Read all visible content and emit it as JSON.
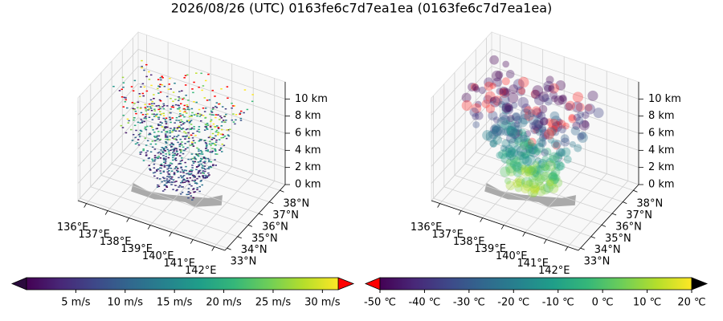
{
  "title": "2026/08/26 (UTC) 0163fe6c7d7ea1ea (0163fe6c7d7ea1ea)",
  "chart_data": [
    {
      "type": "scatter3d",
      "xlim": [
        135.6,
        142.5
      ],
      "ylim": [
        32.8,
        38.5
      ],
      "zlim": [
        0,
        12
      ],
      "xticks": [
        {
          "value": 136,
          "label": "136°E"
        },
        {
          "value": 137,
          "label": "137°E"
        },
        {
          "value": 138,
          "label": "138°E"
        },
        {
          "value": 139,
          "label": "139°E"
        },
        {
          "value": 140,
          "label": "140°E"
        },
        {
          "value": 141,
          "label": "141°E"
        },
        {
          "value": 142,
          "label": "142°E"
        }
      ],
      "yticks": [
        {
          "value": 33,
          "label": "33°N"
        },
        {
          "value": 34,
          "label": "34°N"
        },
        {
          "value": 35,
          "label": "35°N"
        },
        {
          "value": 36,
          "label": "36°N"
        },
        {
          "value": 37,
          "label": "37°N"
        },
        {
          "value": 38,
          "label": "38°N"
        }
      ],
      "zticks": [
        {
          "value": 0,
          "label": "0 km"
        },
        {
          "value": 2,
          "label": "2 km"
        },
        {
          "value": 4,
          "label": "4 km"
        },
        {
          "value": 6,
          "label": "6 km"
        },
        {
          "value": 8,
          "label": "8 km"
        },
        {
          "value": 10,
          "label": "10 km"
        }
      ],
      "colorbar": {
        "colormap": "viridis",
        "clim": [
          0,
          31.6
        ],
        "under_color": "#2b0a3d",
        "over_color": "#ff0000",
        "ticks": [
          {
            "value": 5,
            "label": "5 m/s"
          },
          {
            "value": 10,
            "label": "10 m/s"
          },
          {
            "value": 15,
            "label": "15 m/s"
          },
          {
            "value": 20,
            "label": "20 m/s"
          },
          {
            "value": 25,
            "label": "25 m/s"
          },
          {
            "value": 30,
            "label": "30 m/s"
          }
        ]
      }
    },
    {
      "type": "scatter3d",
      "xlim": [
        135.6,
        142.5
      ],
      "ylim": [
        32.8,
        38.5
      ],
      "zlim": [
        0,
        12
      ],
      "xticks": [
        {
          "value": 136,
          "label": "136°E"
        },
        {
          "value": 137,
          "label": "137°E"
        },
        {
          "value": 138,
          "label": "138°E"
        },
        {
          "value": 139,
          "label": "139°E"
        },
        {
          "value": 140,
          "label": "140°E"
        },
        {
          "value": 141,
          "label": "141°E"
        },
        {
          "value": 142,
          "label": "142°E"
        }
      ],
      "yticks": [
        {
          "value": 33,
          "label": "33°N"
        },
        {
          "value": 34,
          "label": "34°N"
        },
        {
          "value": 35,
          "label": "35°N"
        },
        {
          "value": 36,
          "label": "36°N"
        },
        {
          "value": 37,
          "label": "37°N"
        },
        {
          "value": 38,
          "label": "38°N"
        }
      ],
      "zticks": [
        {
          "value": 0,
          "label": "0 km"
        },
        {
          "value": 2,
          "label": "2 km"
        },
        {
          "value": 4,
          "label": "4 km"
        },
        {
          "value": 6,
          "label": "6 km"
        },
        {
          "value": 8,
          "label": "8 km"
        },
        {
          "value": 10,
          "label": "10 km"
        }
      ],
      "colorbar": {
        "colormap": "viridis",
        "clim": [
          -50,
          20
        ],
        "under_color": "#ff0000",
        "over_color": "#000000",
        "ticks": [
          {
            "value": -50,
            "label": "-50 ℃"
          },
          {
            "value": -40,
            "label": "-40 ℃"
          },
          {
            "value": -30,
            "label": "-30 ℃"
          },
          {
            "value": -20,
            "label": "-20 ℃"
          },
          {
            "value": -10,
            "label": "-10 ℃"
          },
          {
            "value": 0,
            "label": "0 ℃"
          },
          {
            "value": 10,
            "label": "10 ℃"
          },
          {
            "value": 20,
            "label": "20 ℃"
          }
        ]
      }
    }
  ]
}
